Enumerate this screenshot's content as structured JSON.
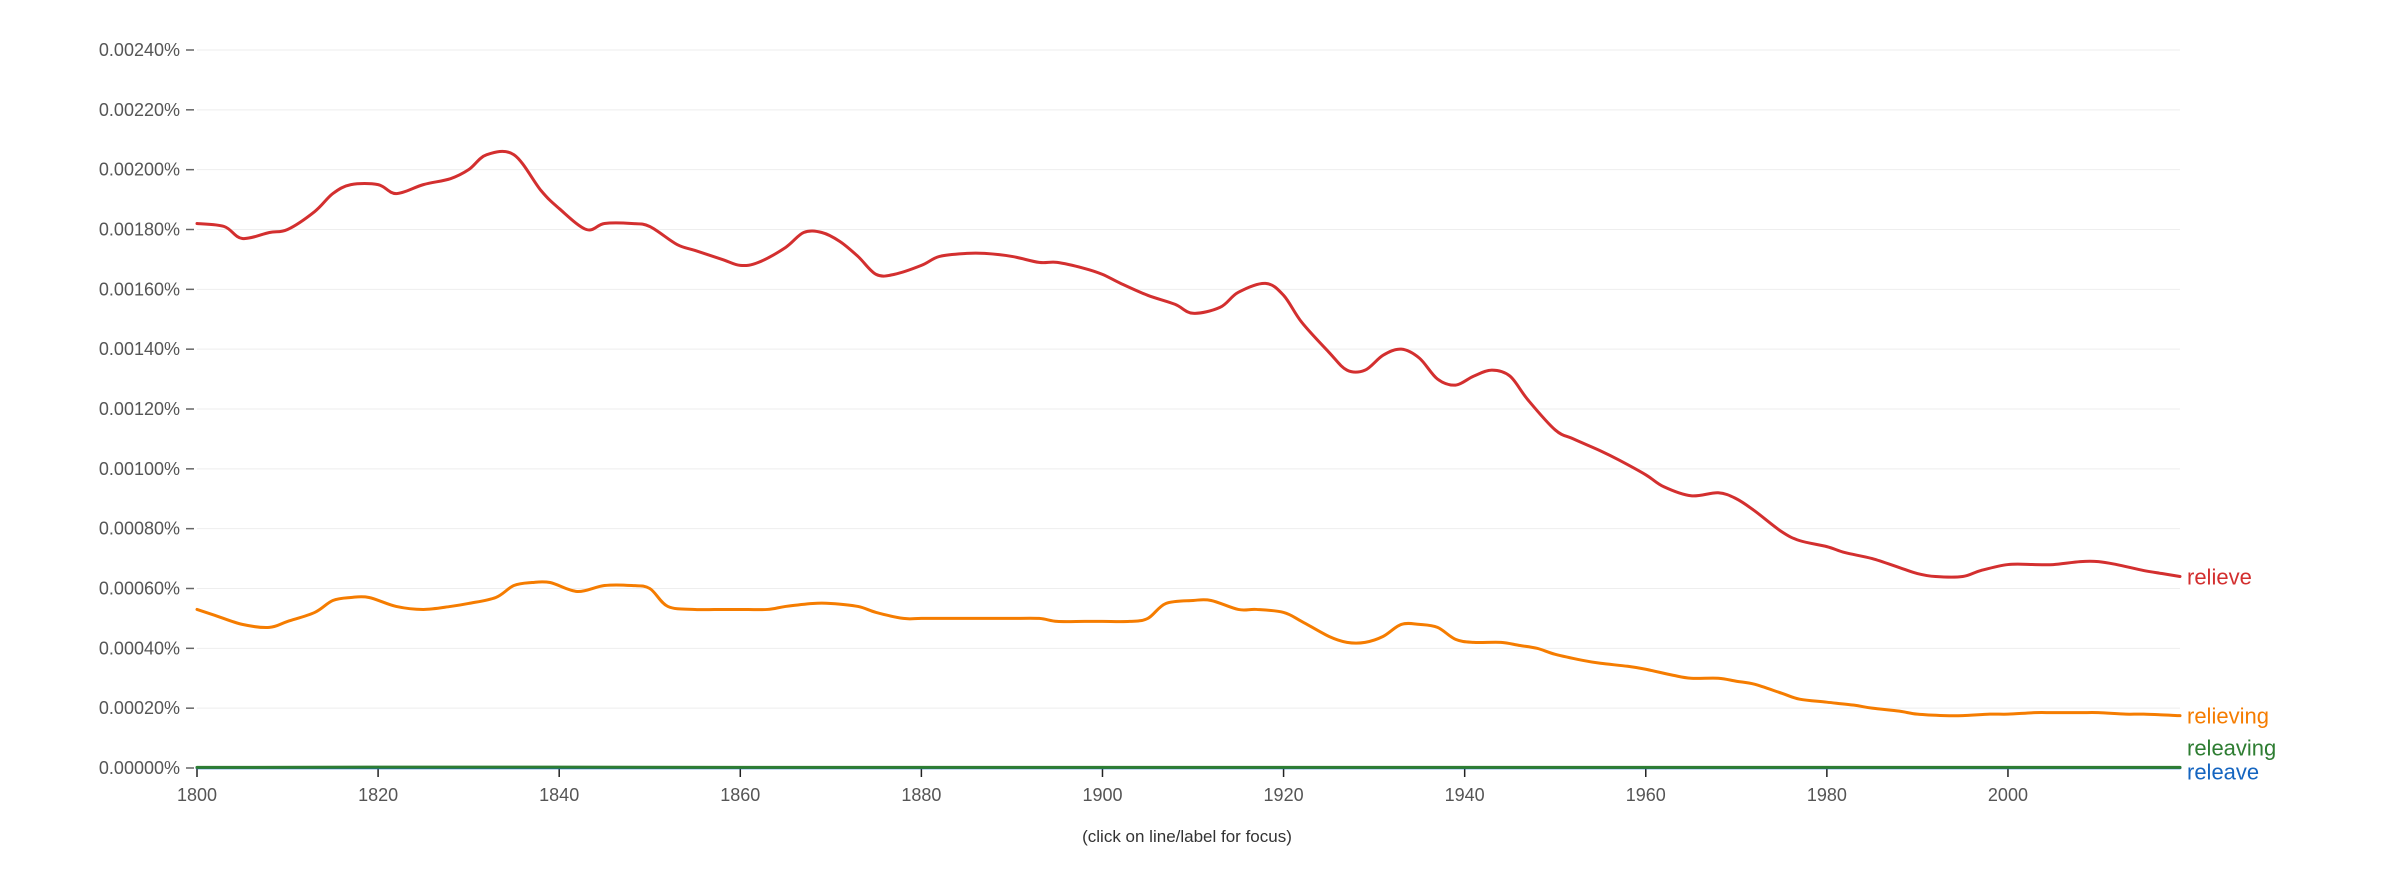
{
  "chart_data": {
    "type": "line",
    "title": "",
    "xlabel": "",
    "ylabel": "",
    "xlim": [
      1800,
      2019
    ],
    "ylim": [
      0,
      0.0024
    ],
    "x_ticks": [
      1800,
      1820,
      1840,
      1860,
      1880,
      1900,
      1920,
      1940,
      1960,
      1980,
      2000
    ],
    "x_tick_labels": [
      "1800",
      "1820",
      "1840",
      "1860",
      "1880",
      "1900",
      "1920",
      "1940",
      "1960",
      "1980",
      "2000"
    ],
    "y_ticks": [
      0,
      0.0002,
      0.0004,
      0.0006,
      0.0008,
      0.001,
      0.0012,
      0.0014,
      0.0016,
      0.0018,
      0.002,
      0.0022,
      0.0024
    ],
    "y_tick_labels": [
      "0.00000%",
      "0.00020%",
      "0.00040%",
      "0.00060%",
      "0.00080%",
      "0.00100%",
      "0.00120%",
      "0.00140%",
      "0.00160%",
      "0.00180%",
      "0.00200%",
      "0.00220%",
      "0.00240%"
    ],
    "grid": true,
    "footnote": "(click on line/label for focus)",
    "series": [
      {
        "name": "relieve",
        "color": "#d32f2f",
        "x": [
          1800,
          1803,
          1805,
          1808,
          1810,
          1813,
          1815,
          1817,
          1820,
          1822,
          1825,
          1828,
          1830,
          1832,
          1835,
          1838,
          1840,
          1843,
          1845,
          1848,
          1850,
          1853,
          1855,
          1858,
          1860,
          1862,
          1865,
          1867,
          1869,
          1871,
          1873,
          1875,
          1877,
          1880,
          1882,
          1885,
          1887,
          1890,
          1893,
          1895,
          1898,
          1900,
          1902,
          1905,
          1908,
          1910,
          1913,
          1915,
          1918,
          1920,
          1922,
          1925,
          1927,
          1929,
          1931,
          1933,
          1935,
          1937,
          1939,
          1941,
          1943,
          1945,
          1947,
          1950,
          1952,
          1955,
          1957,
          1960,
          1962,
          1965,
          1968,
          1970,
          1972,
          1975,
          1977,
          1980,
          1982,
          1985,
          1988,
          1990,
          1992,
          1995,
          1997,
          2000,
          2003,
          2005,
          2008,
          2010,
          2012,
          2015,
          2017,
          2019
        ],
        "values": [
          0.00182,
          0.00181,
          0.00177,
          0.00179,
          0.0018,
          0.00186,
          0.00192,
          0.00195,
          0.00195,
          0.00192,
          0.00195,
          0.00197,
          0.002,
          0.00205,
          0.00205,
          0.00193,
          0.00187,
          0.0018,
          0.00182,
          0.00182,
          0.00181,
          0.00175,
          0.00173,
          0.0017,
          0.00168,
          0.00169,
          0.00174,
          0.00179,
          0.00179,
          0.00176,
          0.00171,
          0.00165,
          0.00165,
          0.00168,
          0.00171,
          0.00172,
          0.00172,
          0.00171,
          0.00169,
          0.00169,
          0.00167,
          0.00165,
          0.00162,
          0.00158,
          0.00155,
          0.00152,
          0.00154,
          0.00159,
          0.00162,
          0.00158,
          0.00149,
          0.00139,
          0.00133,
          0.00133,
          0.00138,
          0.0014,
          0.00137,
          0.0013,
          0.00128,
          0.00131,
          0.00133,
          0.00131,
          0.00123,
          0.00113,
          0.0011,
          0.00106,
          0.00103,
          0.00098,
          0.00094,
          0.00091,
          0.00092,
          0.0009,
          0.00086,
          0.00079,
          0.00076,
          0.00074,
          0.00072,
          0.0007,
          0.00067,
          0.00065,
          0.00064,
          0.00064,
          0.00066,
          0.00068,
          0.00068,
          0.00068,
          0.00069,
          0.00069,
          0.00068,
          0.00066,
          0.00065,
          0.00064
        ]
      },
      {
        "name": "relieving",
        "color": "#f57c00",
        "x": [
          1800,
          1802,
          1805,
          1808,
          1810,
          1813,
          1815,
          1817,
          1819,
          1822,
          1825,
          1828,
          1830,
          1833,
          1835,
          1837,
          1839,
          1842,
          1845,
          1848,
          1850,
          1852,
          1855,
          1858,
          1860,
          1863,
          1865,
          1868,
          1870,
          1873,
          1875,
          1878,
          1880,
          1883,
          1885,
          1888,
          1890,
          1893,
          1895,
          1898,
          1900,
          1903,
          1905,
          1907,
          1910,
          1912,
          1915,
          1917,
          1920,
          1922,
          1925,
          1927,
          1929,
          1931,
          1933,
          1935,
          1937,
          1939,
          1941,
          1944,
          1946,
          1948,
          1950,
          1953,
          1955,
          1958,
          1960,
          1963,
          1965,
          1968,
          1970,
          1972,
          1975,
          1977,
          1980,
          1983,
          1985,
          1988,
          1990,
          1993,
          1995,
          1998,
          2000,
          2003,
          2005,
          2008,
          2010,
          2013,
          2015,
          2019
        ],
        "values": [
          0.00053,
          0.00051,
          0.00048,
          0.00047,
          0.00049,
          0.00052,
          0.00056,
          0.00057,
          0.00057,
          0.00054,
          0.00053,
          0.00054,
          0.00055,
          0.00057,
          0.00061,
          0.00062,
          0.00062,
          0.00059,
          0.00061,
          0.00061,
          0.0006,
          0.00054,
          0.00053,
          0.00053,
          0.00053,
          0.00053,
          0.00054,
          0.00055,
          0.00055,
          0.00054,
          0.00052,
          0.0005,
          0.0005,
          0.0005,
          0.0005,
          0.0005,
          0.0005,
          0.0005,
          0.00049,
          0.00049,
          0.00049,
          0.00049,
          0.0005,
          0.00055,
          0.00056,
          0.00056,
          0.00053,
          0.00053,
          0.00052,
          0.00049,
          0.00044,
          0.00042,
          0.00042,
          0.00044,
          0.00048,
          0.00048,
          0.00047,
          0.00043,
          0.00042,
          0.00042,
          0.00041,
          0.0004,
          0.00038,
          0.00036,
          0.00035,
          0.00034,
          0.00033,
          0.00031,
          0.0003,
          0.0003,
          0.00029,
          0.00028,
          0.00025,
          0.00023,
          0.00022,
          0.00021,
          0.0002,
          0.00019,
          0.00018,
          0.000175,
          0.000175,
          0.00018,
          0.00018,
          0.000185,
          0.000185,
          0.000185,
          0.000185,
          0.00018,
          0.00018,
          0.000175
        ]
      },
      {
        "name": "releaving",
        "color": "#2e7d32",
        "x": [
          1800,
          1830,
          1860,
          1900,
          1950,
          2000,
          2019
        ],
        "values": [
          2e-06,
          3e-06,
          2e-06,
          2e-06,
          2e-06,
          2e-06,
          2e-06
        ]
      },
      {
        "name": "releave",
        "color": "#1565c0",
        "x": [
          1800,
          1850,
          1900,
          1950,
          2000,
          2019
        ],
        "values": [
          1e-06,
          1e-06,
          1e-06,
          1e-06,
          1e-06,
          1e-06
        ]
      }
    ]
  }
}
